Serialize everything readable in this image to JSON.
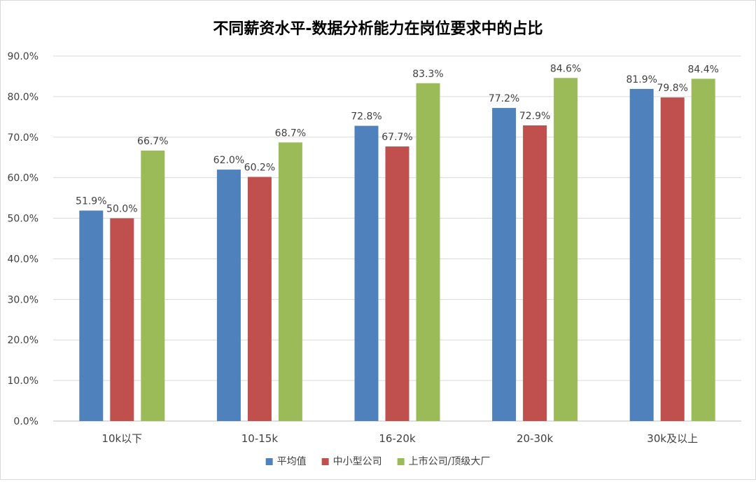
{
  "chart_data": {
    "type": "bar",
    "title": "不同薪资水平-数据分析能力在岗位要求中的占比",
    "categories": [
      "10k以下",
      "10-15k",
      "16-20k",
      "20-30k",
      "30k及以上"
    ],
    "series": [
      {
        "name": "平均值",
        "color": "#4f81bd",
        "values": [
          51.9,
          62.0,
          72.8,
          77.2,
          81.9
        ],
        "labels": [
          "51.9%",
          "62.0%",
          "72.8%",
          "77.2%",
          "81.9%"
        ]
      },
      {
        "name": "中小型公司",
        "color": "#c0504d",
        "values": [
          50.0,
          60.2,
          67.7,
          72.9,
          79.8
        ],
        "labels": [
          "50.0%",
          "60.2%",
          "67.7%",
          "72.9%",
          "79.8%"
        ]
      },
      {
        "name": "上市公司/顶级大厂",
        "color": "#9bbb59",
        "values": [
          66.7,
          68.7,
          83.3,
          84.6,
          84.4
        ],
        "labels": [
          "66.7%",
          "68.7%",
          "83.3%",
          "84.6%",
          "84.4%"
        ]
      }
    ],
    "ylim": [
      0,
      90
    ],
    "yticks": [
      "0.0%",
      "10.0%",
      "20.0%",
      "30.0%",
      "40.0%",
      "50.0%",
      "60.0%",
      "70.0%",
      "80.0%",
      "90.0%"
    ],
    "xlabel": "",
    "ylabel": "",
    "grid": true,
    "legend_position": "bottom"
  }
}
